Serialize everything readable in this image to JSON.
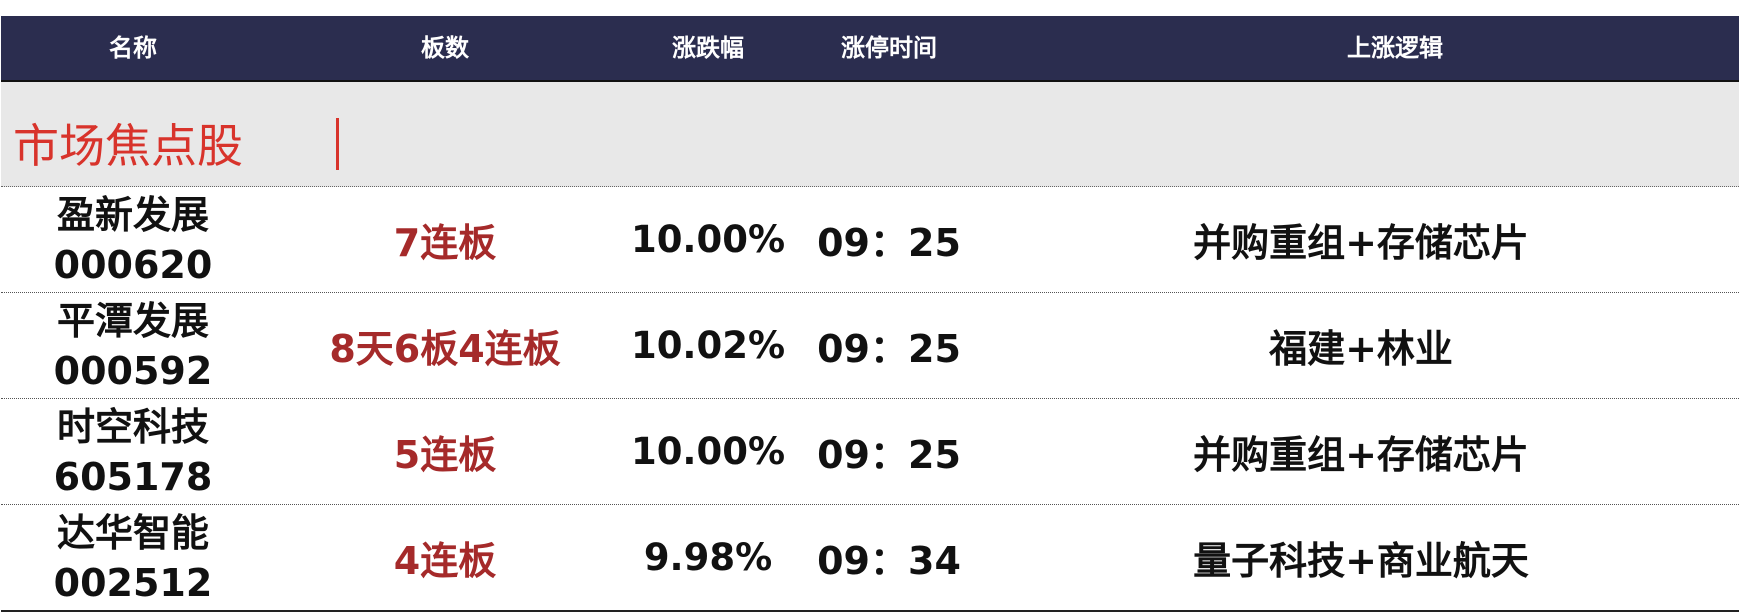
{
  "header": {
    "columns": [
      "名称",
      "板数",
      "涨跌幅",
      "涨停时间",
      "上涨逻辑"
    ]
  },
  "section": {
    "title": "市场焦点股"
  },
  "colors": {
    "header_bg": "#2b2d4f",
    "section_title": "#d8332b",
    "boards_text": "#a52a2a"
  },
  "rows": [
    {
      "name": "盈新发展",
      "code": "000620",
      "boards": "7连板",
      "change": "10.00%",
      "limit_time": "09：25",
      "logic": "并购重组+存储芯片"
    },
    {
      "name": "平潭发展",
      "code": "000592",
      "boards": "8天6板4连板",
      "change": "10.02%",
      "limit_time": "09：25",
      "logic": "福建+林业"
    },
    {
      "name": "时空科技",
      "code": "605178",
      "boards": "5连板",
      "change": "10.00%",
      "limit_time": "09：25",
      "logic": "并购重组+存储芯片"
    },
    {
      "name": "达华智能",
      "code": "002512",
      "boards": "4连板",
      "change": "9.98%",
      "limit_time": "09：34",
      "logic": "量子科技+商业航天"
    }
  ]
}
